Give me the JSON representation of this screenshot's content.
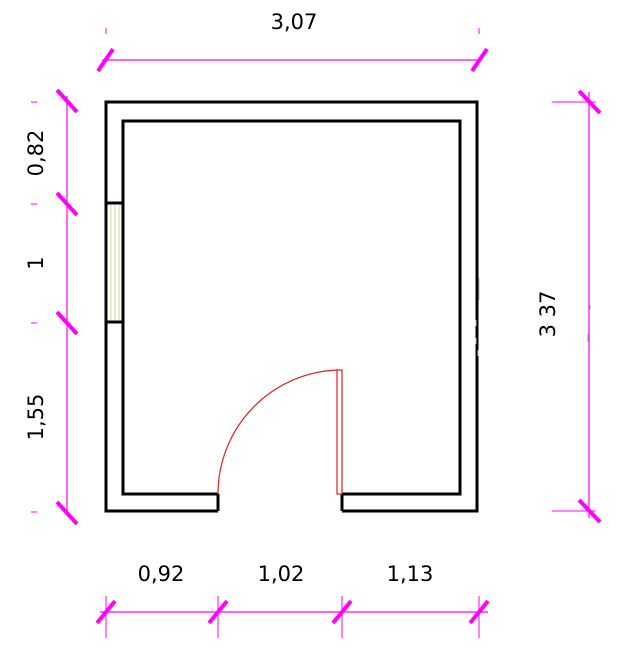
{
  "colors": {
    "dimension": "#ff00ff",
    "wall": "#000000",
    "door": "#e02020",
    "window": "#eaeaa0",
    "background": "#ffffff"
  },
  "dimensions": {
    "top_total": "3,07",
    "right_total": "3 37",
    "left": [
      "0,82",
      "1",
      "1,55"
    ],
    "bottom": [
      "0,92",
      "1,02",
      "1,13"
    ]
  }
}
